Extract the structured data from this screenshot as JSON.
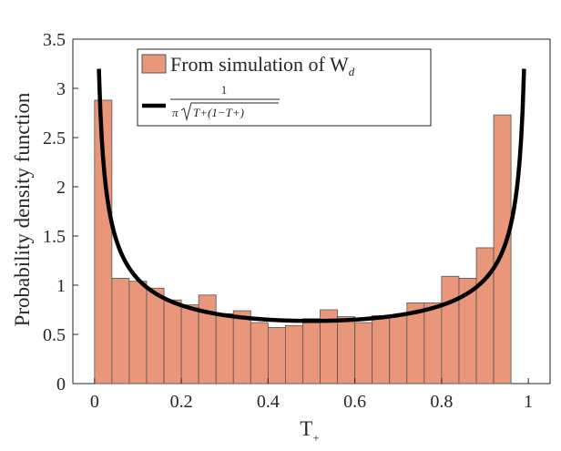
{
  "chart_data": {
    "type": "bar",
    "title": "",
    "xlabel": "T",
    "xlabel_subscript": "+",
    "ylabel": "Probability density function",
    "xlim": [
      -0.05,
      1.05
    ],
    "ylim": [
      0,
      3.5
    ],
    "xticks": [
      0,
      0.2,
      0.4,
      0.6,
      0.8,
      1
    ],
    "xtick_labels": [
      "0",
      "0.2",
      "0.4",
      "0.6",
      "0.8",
      "1"
    ],
    "yticks": [
      0,
      0.5,
      1,
      1.5,
      2,
      2.5,
      3,
      3.5
    ],
    "ytick_labels": [
      "0",
      "0.5",
      "1",
      "1.5",
      "2",
      "2.5",
      "3",
      "3.5"
    ],
    "bin_width": 0.04,
    "bin_start": 0,
    "series": [
      {
        "name": "From simulation of W_d",
        "type": "histogram",
        "color": "#E9967A",
        "edge_color": "#555555",
        "values": [
          2.88,
          1.07,
          1.04,
          0.97,
          0.85,
          0.8,
          0.9,
          0.71,
          0.74,
          0.62,
          0.57,
          0.59,
          0.66,
          0.75,
          0.68,
          0.62,
          0.69,
          0.7,
          0.82,
          0.82,
          1.09,
          1.07,
          1.38,
          2.73
        ]
      },
      {
        "name": "1/(π√(T+(1−T+)))",
        "type": "line",
        "color": "#000000",
        "function": "1/(pi*sqrt(x*(1-x)))",
        "x_range": [
          0.01,
          0.99
        ]
      }
    ],
    "legend": {
      "position": "top",
      "hist_label_main": "From simulation of W",
      "hist_label_sub": "d",
      "curve_label_numerator": "1",
      "curve_label_pi": "π",
      "curve_label_radicand": "T+(1−T+)"
    }
  }
}
